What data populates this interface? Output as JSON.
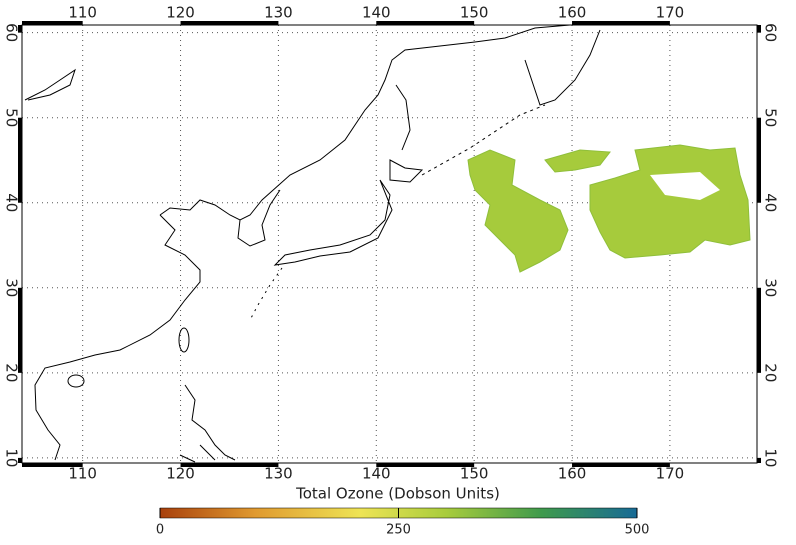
{
  "map": {
    "colorbar_label": "Total Ozone (Dobson Units)",
    "xticks": [
      110,
      120,
      130,
      140,
      150,
      160,
      170
    ],
    "yticks": [
      10,
      20,
      30,
      40,
      50,
      60
    ],
    "xlim": [
      103.8,
      178.9
    ],
    "ylim": [
      9.4,
      60.9
    ],
    "colorbar": {
      "ticks": [
        0,
        250,
        500
      ],
      "lim": [
        0,
        500
      ]
    }
  }
}
